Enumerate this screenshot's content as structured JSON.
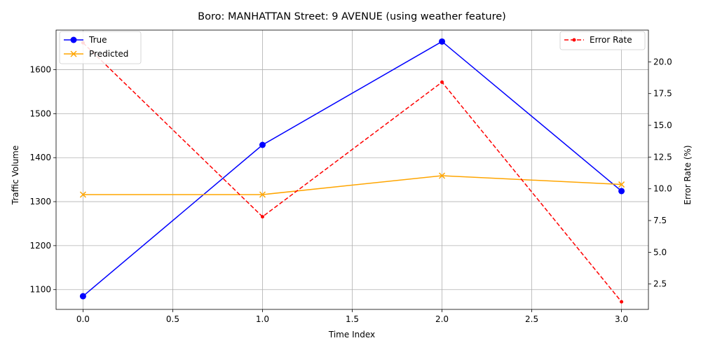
{
  "chart_data": {
    "type": "line",
    "title": "Boro: MANHATTAN Street: 9 AVENUE (using weather feature)",
    "xlabel": "Time Index",
    "ylabel": "Traffic Volume",
    "y2label": "Error Rate (%)",
    "x": [
      0,
      1,
      2,
      3
    ],
    "xlim": [
      -0.15,
      3.15
    ],
    "ylim": [
      1055,
      1690
    ],
    "y2lim": [
      0.5,
      22.5
    ],
    "xticks": [
      "0.0",
      "0.5",
      "1.0",
      "1.5",
      "2.0",
      "2.5",
      "3.0"
    ],
    "yticks": [
      "1100",
      "1200",
      "1300",
      "1400",
      "1500",
      "1600"
    ],
    "y2ticks": [
      "2.5",
      "5.0",
      "7.5",
      "10.0",
      "12.5",
      "15.0",
      "17.5",
      "20.0"
    ],
    "grid": true,
    "series": [
      {
        "name": "True",
        "axis": "left",
        "color": "#0000ff",
        "marker": "circle",
        "dash": "solid",
        "values": [
          1085,
          1429,
          1664,
          1324
        ]
      },
      {
        "name": "Predicted",
        "axis": "left",
        "color": "#ffa500",
        "marker": "x",
        "dash": "solid",
        "values": [
          1316,
          1316,
          1359,
          1339
        ]
      },
      {
        "name": "Error Rate",
        "axis": "right",
        "color": "#ff0000",
        "marker": "dot",
        "dash": "dashed",
        "values": [
          21.5,
          7.8,
          18.4,
          1.1
        ]
      }
    ],
    "legend_left": {
      "placement": "upper-left",
      "entries": [
        "True",
        "Predicted"
      ]
    },
    "legend_right": {
      "placement": "upper-right",
      "entries": [
        "Error Rate"
      ]
    }
  }
}
